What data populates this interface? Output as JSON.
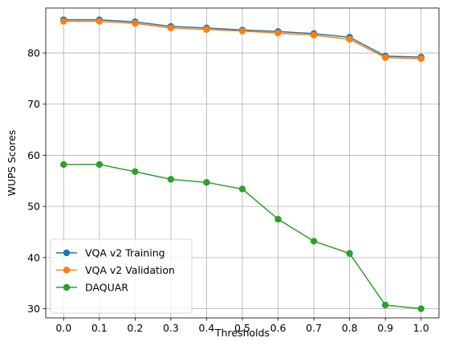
{
  "chart_data": {
    "type": "line",
    "title": "",
    "xlabel": "Thresholds",
    "ylabel": "WUPS Scores",
    "x": [
      0.0,
      0.1,
      0.2,
      0.3,
      0.4,
      0.5,
      0.6,
      0.7,
      0.8,
      0.9,
      1.0
    ],
    "x_tick_labels": [
      "0.0",
      "0.1",
      "0.2",
      "0.3",
      "0.4",
      "0.5",
      "0.6",
      "0.7",
      "0.8",
      "0.9",
      "1.0"
    ],
    "y_ticks": [
      30,
      40,
      50,
      60,
      70,
      80
    ],
    "y_tick_labels": [
      "30",
      "40",
      "50",
      "60",
      "70",
      "80"
    ],
    "xlim": [
      -0.05,
      1.05
    ],
    "ylim": [
      28.2,
      88.8
    ],
    "grid": true,
    "legend_position": "lower-left",
    "series": [
      {
        "name": "VQA v2 Training",
        "color": "#1f77b4",
        "marker": "circle",
        "values": [
          86.5,
          86.5,
          86.1,
          85.2,
          84.9,
          84.5,
          84.2,
          83.8,
          83.1,
          79.4,
          79.2
        ]
      },
      {
        "name": "VQA v2 Validation",
        "color": "#ff7f0e",
        "marker": "circle",
        "values": [
          86.2,
          86.2,
          85.8,
          84.9,
          84.6,
          84.3,
          83.9,
          83.5,
          82.7,
          79.1,
          78.9
        ]
      },
      {
        "name": "DAQUAR",
        "color": "#2ca02c",
        "marker": "circle",
        "values": [
          58.2,
          58.2,
          56.8,
          55.3,
          54.7,
          53.4,
          47.5,
          43.2,
          40.8,
          30.7,
          30.0
        ]
      }
    ]
  }
}
